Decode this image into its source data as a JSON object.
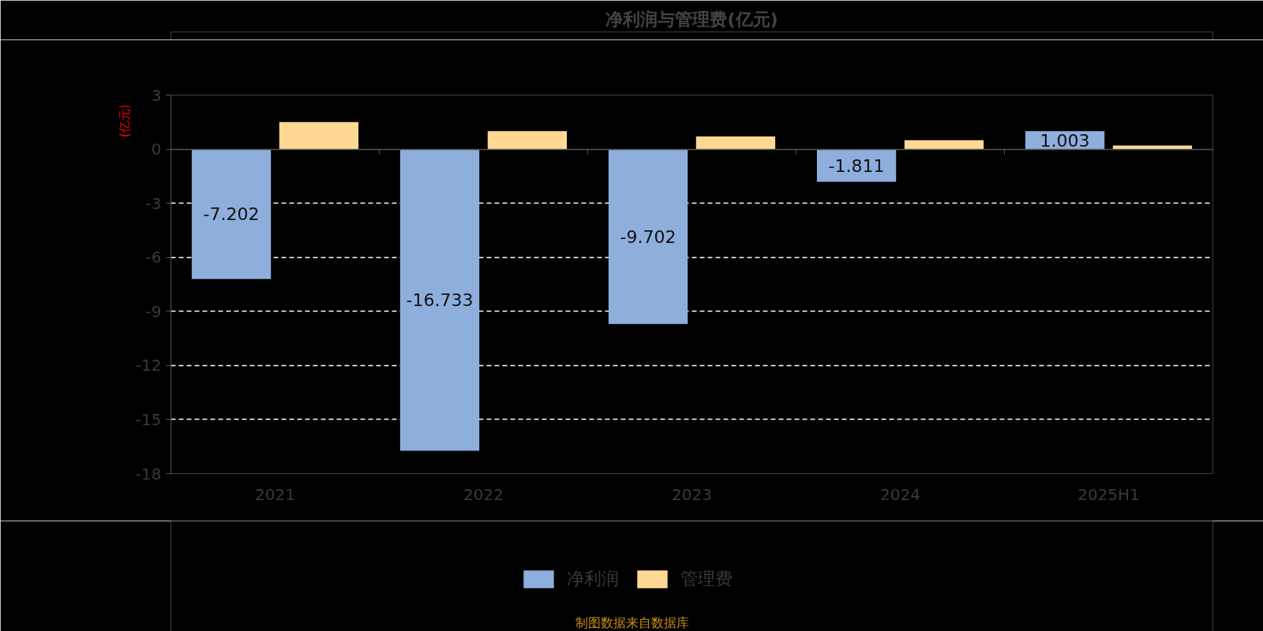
{
  "chart_data": {
    "type": "bar",
    "title": "净利润与管理费(亿元)",
    "ylabel": "(亿元)",
    "categories": [
      "2021",
      "2022",
      "2023",
      "2024",
      "2025H1"
    ],
    "series": [
      {
        "name": "净利润",
        "color": "#8eaedc",
        "values": [
          -7.202,
          -16.733,
          -9.702,
          -1.811,
          1.003
        ],
        "value_labels": [
          "-7.202",
          "-16.733",
          "-9.702",
          "-1.811",
          "1.003"
        ]
      },
      {
        "name": "管理费",
        "color": "#ffd993",
        "values": [
          1.5,
          1.0,
          0.7,
          0.5,
          0.2
        ]
      }
    ],
    "ylim": [
      -18,
      3
    ],
    "yticks": [
      3,
      0,
      -3,
      -6,
      -9,
      -12,
      -15,
      -18
    ],
    "grid": "y",
    "legend": "bottom",
    "annotations": [
      "制图数据来自数据库"
    ]
  }
}
